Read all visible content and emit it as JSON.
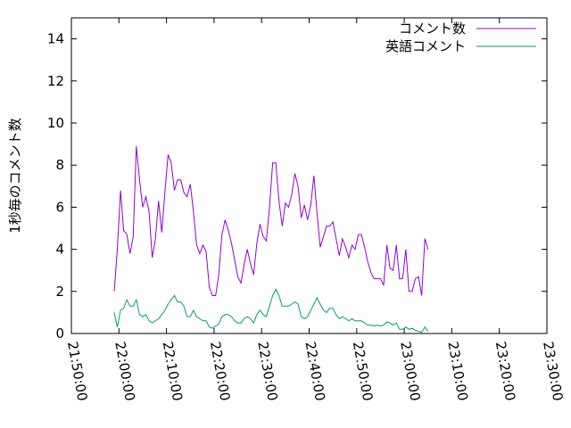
{
  "chart_data": {
    "type": "line",
    "ylabel": "1秒毎のコメント数",
    "xlabel": "",
    "title": "",
    "ylim": [
      0,
      15
    ],
    "yticks": [
      0,
      2,
      4,
      6,
      8,
      10,
      12,
      14
    ],
    "xlim": [
      "21:50:00",
      "23:30:00"
    ],
    "xticks": [
      "21:50:00",
      "22:00:00",
      "22:10:00",
      "22:20:00",
      "22:30:00",
      "22:40:00",
      "22:50:00",
      "23:00:00",
      "23:10:00",
      "23:20:00",
      "23:30:00"
    ],
    "grid": false,
    "legend_position": "top-right",
    "series": [
      {
        "name": "コメント数",
        "color": "#9400d3",
        "points": [
          [
            "21:59:00",
            2.0
          ],
          [
            "21:59:40",
            4.0
          ],
          [
            "22:00:20",
            6.8
          ],
          [
            "22:01:00",
            4.9
          ],
          [
            "22:01:40",
            4.7
          ],
          [
            "22:02:20",
            3.8
          ],
          [
            "22:03:00",
            4.6
          ],
          [
            "22:03:40",
            8.9
          ],
          [
            "22:04:20",
            7.3
          ],
          [
            "22:05:00",
            6.0
          ],
          [
            "22:05:40",
            6.5
          ],
          [
            "22:06:20",
            5.8
          ],
          [
            "22:07:00",
            3.6
          ],
          [
            "22:07:40",
            4.5
          ],
          [
            "22:08:20",
            6.3
          ],
          [
            "22:09:00",
            4.8
          ],
          [
            "22:09:40",
            6.7
          ],
          [
            "22:10:20",
            8.5
          ],
          [
            "22:11:00",
            8.1
          ],
          [
            "22:11:40",
            6.8
          ],
          [
            "22:12:20",
            7.3
          ],
          [
            "22:13:00",
            7.3
          ],
          [
            "22:13:40",
            6.7
          ],
          [
            "22:14:20",
            6.5
          ],
          [
            "22:15:00",
            7.1
          ],
          [
            "22:15:40",
            5.8
          ],
          [
            "22:16:20",
            4.2
          ],
          [
            "22:17:00",
            3.8
          ],
          [
            "22:17:40",
            4.2
          ],
          [
            "22:18:20",
            3.9
          ],
          [
            "22:19:00",
            2.2
          ],
          [
            "22:19:40",
            1.8
          ],
          [
            "22:20:20",
            1.8
          ],
          [
            "22:21:00",
            2.8
          ],
          [
            "22:21:40",
            4.7
          ],
          [
            "22:22:20",
            5.4
          ],
          [
            "22:23:00",
            4.9
          ],
          [
            "22:23:40",
            4.3
          ],
          [
            "22:24:20",
            3.5
          ],
          [
            "22:25:00",
            2.7
          ],
          [
            "22:25:40",
            2.4
          ],
          [
            "22:26:20",
            3.3
          ],
          [
            "22:27:00",
            4.0
          ],
          [
            "22:27:40",
            3.3
          ],
          [
            "22:28:20",
            2.8
          ],
          [
            "22:29:00",
            4.3
          ],
          [
            "22:29:40",
            5.2
          ],
          [
            "22:30:20",
            4.6
          ],
          [
            "22:31:00",
            4.4
          ],
          [
            "22:31:40",
            6.0
          ],
          [
            "22:32:20",
            8.1
          ],
          [
            "22:33:00",
            8.1
          ],
          [
            "22:33:40",
            6.3
          ],
          [
            "22:34:20",
            5.1
          ],
          [
            "22:35:00",
            6.2
          ],
          [
            "22:35:40",
            6.0
          ],
          [
            "22:36:20",
            6.6
          ],
          [
            "22:37:00",
            7.6
          ],
          [
            "22:37:40",
            7.0
          ],
          [
            "22:38:20",
            5.5
          ],
          [
            "22:39:00",
            6.1
          ],
          [
            "22:39:40",
            5.4
          ],
          [
            "22:40:20",
            6.1
          ],
          [
            "22:41:00",
            7.5
          ],
          [
            "22:41:40",
            5.7
          ],
          [
            "22:42:20",
            4.1
          ],
          [
            "22:43:00",
            4.6
          ],
          [
            "22:43:40",
            5.1
          ],
          [
            "22:44:20",
            5.1
          ],
          [
            "22:45:00",
            5.3
          ],
          [
            "22:45:40",
            4.5
          ],
          [
            "22:46:20",
            3.7
          ],
          [
            "22:47:00",
            4.5
          ],
          [
            "22:47:40",
            4.1
          ],
          [
            "22:48:20",
            3.6
          ],
          [
            "22:49:00",
            4.2
          ],
          [
            "22:49:40",
            4.0
          ],
          [
            "22:50:20",
            4.7
          ],
          [
            "22:51:00",
            4.7
          ],
          [
            "22:51:40",
            4.1
          ],
          [
            "22:52:20",
            3.4
          ],
          [
            "22:53:00",
            2.9
          ],
          [
            "22:53:40",
            2.6
          ],
          [
            "22:54:20",
            2.6
          ],
          [
            "22:55:00",
            2.6
          ],
          [
            "22:55:40",
            2.3
          ],
          [
            "22:56:20",
            4.2
          ],
          [
            "22:57:00",
            3.1
          ],
          [
            "22:57:40",
            3.0
          ],
          [
            "22:58:20",
            4.2
          ],
          [
            "22:59:00",
            2.6
          ],
          [
            "22:59:40",
            2.6
          ],
          [
            "23:00:20",
            4.0
          ],
          [
            "23:01:00",
            2.0
          ],
          [
            "23:01:40",
            2.0
          ],
          [
            "23:02:20",
            2.6
          ],
          [
            "23:03:00",
            2.7
          ],
          [
            "23:03:40",
            1.8
          ],
          [
            "23:04:20",
            4.5
          ],
          [
            "23:05:00",
            4.0
          ]
        ]
      },
      {
        "name": "英語コメント",
        "color": "#009e73",
        "points": [
          [
            "21:59:00",
            1.0
          ],
          [
            "21:59:40",
            0.3
          ],
          [
            "22:00:20",
            1.1
          ],
          [
            "22:01:00",
            1.2
          ],
          [
            "22:01:40",
            1.6
          ],
          [
            "22:02:20",
            1.3
          ],
          [
            "22:03:00",
            1.3
          ],
          [
            "22:03:40",
            1.6
          ],
          [
            "22:04:20",
            0.9
          ],
          [
            "22:05:00",
            0.8
          ],
          [
            "22:05:40",
            0.9
          ],
          [
            "22:06:20",
            0.6
          ],
          [
            "22:07:00",
            0.5
          ],
          [
            "22:07:40",
            0.6
          ],
          [
            "22:08:20",
            0.7
          ],
          [
            "22:09:00",
            0.9
          ],
          [
            "22:09:40",
            1.1
          ],
          [
            "22:10:20",
            1.4
          ],
          [
            "22:11:00",
            1.6
          ],
          [
            "22:11:40",
            1.8
          ],
          [
            "22:12:20",
            1.5
          ],
          [
            "22:13:00",
            1.5
          ],
          [
            "22:13:40",
            1.3
          ],
          [
            "22:14:20",
            0.8
          ],
          [
            "22:15:00",
            0.8
          ],
          [
            "22:15:40",
            1.1
          ],
          [
            "22:16:20",
            0.8
          ],
          [
            "22:17:00",
            0.7
          ],
          [
            "22:17:40",
            0.6
          ],
          [
            "22:18:20",
            0.6
          ],
          [
            "22:19:00",
            0.3
          ],
          [
            "22:19:40",
            0.25
          ],
          [
            "22:20:20",
            0.35
          ],
          [
            "22:21:00",
            0.45
          ],
          [
            "22:21:40",
            0.8
          ],
          [
            "22:22:20",
            0.9
          ],
          [
            "22:23:00",
            0.9
          ],
          [
            "22:23:40",
            0.8
          ],
          [
            "22:24:20",
            0.6
          ],
          [
            "22:25:00",
            0.5
          ],
          [
            "22:25:40",
            0.5
          ],
          [
            "22:26:20",
            0.7
          ],
          [
            "22:27:00",
            0.8
          ],
          [
            "22:27:40",
            0.7
          ],
          [
            "22:28:20",
            0.5
          ],
          [
            "22:29:00",
            0.9
          ],
          [
            "22:29:40",
            1.1
          ],
          [
            "22:30:20",
            0.9
          ],
          [
            "22:31:00",
            0.8
          ],
          [
            "22:31:40",
            1.3
          ],
          [
            "22:32:20",
            1.8
          ],
          [
            "22:33:00",
            2.1
          ],
          [
            "22:33:40",
            1.8
          ],
          [
            "22:34:20",
            1.3
          ],
          [
            "22:35:00",
            1.3
          ],
          [
            "22:35:40",
            1.3
          ],
          [
            "22:36:20",
            1.4
          ],
          [
            "22:37:00",
            1.5
          ],
          [
            "22:37:40",
            1.4
          ],
          [
            "22:38:20",
            0.8
          ],
          [
            "22:39:00",
            0.7
          ],
          [
            "22:39:40",
            0.8
          ],
          [
            "22:40:20",
            1.1
          ],
          [
            "22:41:00",
            1.4
          ],
          [
            "22:41:40",
            1.7
          ],
          [
            "22:42:20",
            1.4
          ],
          [
            "22:43:00",
            1.1
          ],
          [
            "22:43:40",
            1.0
          ],
          [
            "22:44:20",
            1.2
          ],
          [
            "22:45:00",
            1.2
          ],
          [
            "22:45:40",
            0.9
          ],
          [
            "22:46:20",
            0.7
          ],
          [
            "22:47:00",
            0.8
          ],
          [
            "22:47:40",
            0.7
          ],
          [
            "22:48:20",
            0.6
          ],
          [
            "22:49:00",
            0.7
          ],
          [
            "22:49:40",
            0.6
          ],
          [
            "22:50:20",
            0.6
          ],
          [
            "22:51:00",
            0.6
          ],
          [
            "22:51:40",
            0.5
          ],
          [
            "22:52:20",
            0.4
          ],
          [
            "22:53:00",
            0.4
          ],
          [
            "22:53:40",
            0.35
          ],
          [
            "22:54:20",
            0.4
          ],
          [
            "22:55:00",
            0.35
          ],
          [
            "22:55:40",
            0.4
          ],
          [
            "22:56:20",
            0.55
          ],
          [
            "22:57:00",
            0.5
          ],
          [
            "22:57:40",
            0.4
          ],
          [
            "22:58:20",
            0.5
          ],
          [
            "22:59:00",
            0.2
          ],
          [
            "22:59:40",
            0.2
          ],
          [
            "23:00:20",
            0.3
          ],
          [
            "23:01:00",
            0.2
          ],
          [
            "23:01:40",
            0.25
          ],
          [
            "23:02:20",
            0.15
          ],
          [
            "23:03:00",
            0.1
          ],
          [
            "23:03:40",
            0.05
          ],
          [
            "23:04:20",
            0.3
          ],
          [
            "23:05:00",
            0.1
          ]
        ]
      }
    ]
  }
}
